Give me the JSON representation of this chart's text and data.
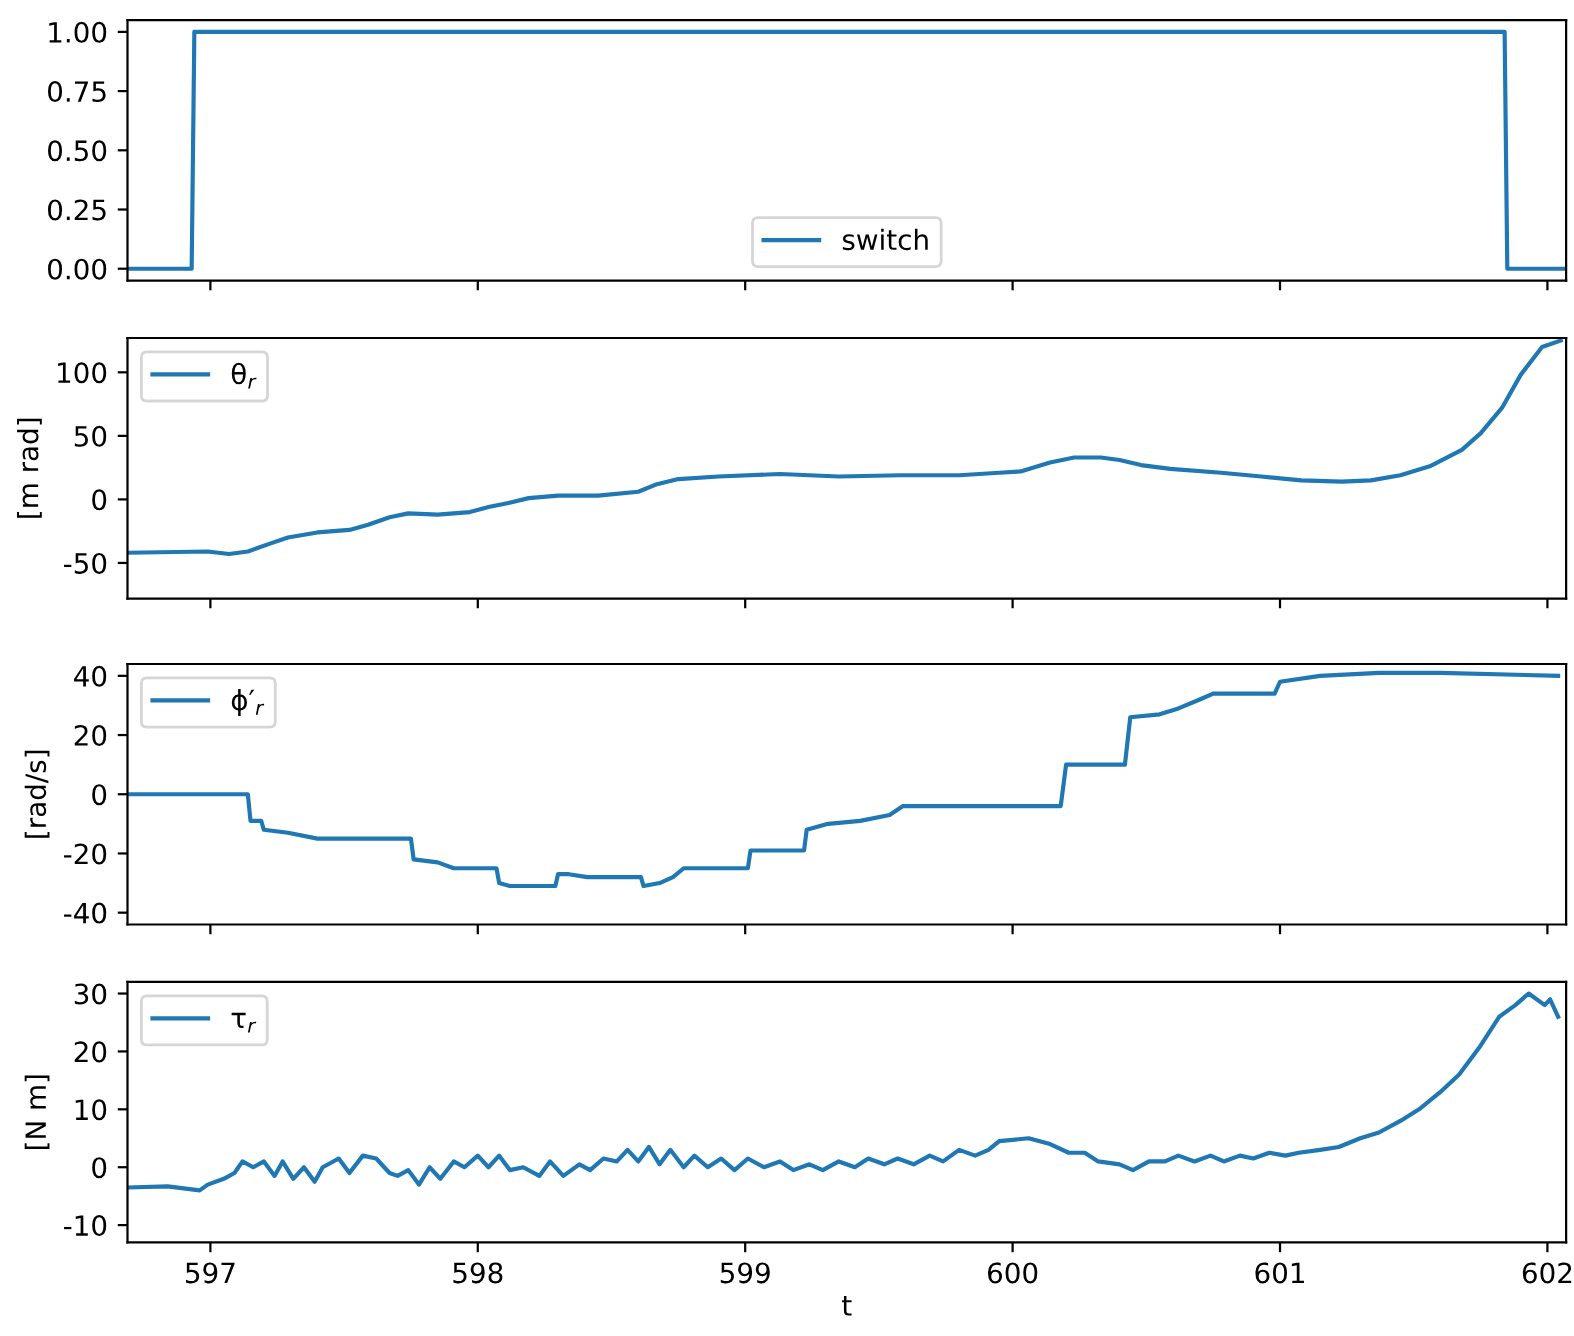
{
  "chart_data": [
    {
      "type": "line",
      "xlim": [
        596.69,
        602.07
      ],
      "xticks": [
        597,
        598,
        599,
        600,
        601,
        602
      ],
      "tick_labels": "y",
      "ylim": [
        -0.05,
        1.05
      ],
      "yticks": [
        {
          "value": 0,
          "label": "0.00"
        },
        {
          "value": 0.25,
          "label": "0.25"
        },
        {
          "value": 0.5,
          "label": "0.50"
        },
        {
          "value": 0.75,
          "label": "0.75"
        },
        {
          "value": 1,
          "label": "1.00"
        }
      ],
      "legend": "bottom",
      "grid": false,
      "series": [
        {
          "name": "switch",
          "color": "#1f77b4",
          "x": [
            596.69,
            596.93,
            596.94,
            601.84,
            601.85,
            602.07
          ],
          "values": [
            0,
            0,
            1,
            1,
            0,
            0
          ]
        }
      ]
    },
    {
      "type": "line",
      "xlim": [
        596.69,
        602.07
      ],
      "xticks": [
        597,
        598,
        599,
        600,
        601,
        602
      ],
      "tick_labels": "y",
      "ylim": [
        -78,
        127
      ],
      "yticks": [
        -50,
        0,
        50,
        100
      ],
      "ylabel": "[m rad]",
      "legend": "top left",
      "grid": false,
      "series": [
        {
          "name": "θ$_{r}$",
          "color": "#1f77b4",
          "x": [
            596.69,
            596.99,
            597.07,
            597.14,
            597.22,
            597.29,
            597.4,
            597.52,
            597.59,
            597.67,
            597.74,
            597.85,
            597.97,
            598.04,
            598.11,
            598.19,
            598.3,
            598.45,
            598.6,
            598.67,
            598.75,
            598.9,
            599.13,
            599.35,
            599.58,
            599.8,
            599.95,
            600.03,
            600.14,
            600.23,
            600.33,
            600.4,
            600.48,
            600.59,
            600.78,
            600.93,
            601.08,
            601.23,
            601.34,
            601.45,
            601.56,
            601.68,
            601.75,
            601.83,
            601.9,
            601.98,
            602.05
          ],
          "values": [
            -42,
            -41,
            -43,
            -41,
            -35,
            -30,
            -26,
            -24,
            -20,
            -14,
            -11,
            -12,
            -10,
            -6,
            -3,
            1,
            3,
            3,
            6,
            12,
            16,
            18,
            20,
            18,
            19,
            19,
            21,
            22,
            29,
            33,
            33,
            31,
            27,
            24,
            21,
            18,
            15,
            14,
            15,
            19,
            26,
            39,
            52,
            72,
            98,
            120,
            125
          ]
        }
      ]
    },
    {
      "type": "line",
      "xlim": [
        596.69,
        602.07
      ],
      "xticks": [
        597,
        598,
        599,
        600,
        601,
        602
      ],
      "tick_labels": "y",
      "ylim": [
        -44,
        44
      ],
      "yticks": [
        -40,
        -20,
        0,
        20,
        40
      ],
      "ylabel": "[rad/s]",
      "legend": "top left",
      "grid": false,
      "series": [
        {
          "name": "ϕ′$_{r}$",
          "color": "#1f77b4",
          "x": [
            596.69,
            597.14,
            597.15,
            597.19,
            597.2,
            597.29,
            597.4,
            597.75,
            597.76,
            597.85,
            597.91,
            598.07,
            598.08,
            598.12,
            598.29,
            598.3,
            598.34,
            598.41,
            598.61,
            598.62,
            598.68,
            598.73,
            598.77,
            599.01,
            599.02,
            599.22,
            599.23,
            599.31,
            599.43,
            599.54,
            599.59,
            600.18,
            600.2,
            600.42,
            600.44,
            600.55,
            600.62,
            600.7,
            600.75,
            600.98,
            601.0,
            601.15,
            601.37,
            601.6,
            602.04
          ],
          "values": [
            0,
            0,
            -9,
            -9,
            -12,
            -13,
            -15,
            -15,
            -22,
            -23,
            -25,
            -25,
            -30,
            -31,
            -31,
            -27,
            -27,
            -28,
            -28,
            -31,
            -30,
            -28,
            -25,
            -25,
            -19,
            -19,
            -12,
            -10,
            -9,
            -7,
            -4,
            -4,
            10,
            10,
            26,
            27,
            29,
            32,
            34,
            34,
            38,
            40,
            41,
            41,
            40
          ]
        }
      ]
    },
    {
      "type": "line",
      "xlim": [
        596.69,
        602.07
      ],
      "xticks": [
        597,
        598,
        599,
        600,
        601,
        602
      ],
      "ylim": [
        -13,
        32
      ],
      "yticks": [
        -10,
        0,
        10,
        20,
        30
      ],
      "ylabel": "[N m]",
      "xlabel": "t",
      "legend": "top left",
      "grid": false,
      "series": [
        {
          "name": "τ$_{r}$",
          "color": "#1f77b4",
          "x": [
            596.69,
            596.84,
            596.96,
            596.99,
            597.05,
            597.09,
            597.12,
            597.16,
            597.2,
            597.24,
            597.27,
            597.31,
            597.35,
            597.39,
            597.42,
            597.48,
            597.52,
            597.57,
            597.62,
            597.67,
            597.7,
            597.74,
            597.78,
            597.82,
            597.86,
            597.91,
            597.95,
            598.0,
            598.04,
            598.08,
            598.12,
            598.17,
            598.23,
            598.27,
            598.32,
            598.38,
            598.42,
            598.47,
            598.52,
            598.56,
            598.6,
            598.64,
            598.68,
            598.72,
            598.77,
            598.81,
            598.86,
            598.91,
            598.96,
            599.01,
            599.07,
            599.13,
            599.18,
            599.24,
            599.29,
            599.35,
            599.41,
            599.46,
            599.52,
            599.57,
            599.63,
            599.69,
            599.74,
            599.8,
            599.86,
            599.91,
            599.95,
            600.06,
            600.14,
            600.21,
            600.27,
            600.32,
            600.4,
            600.45,
            600.51,
            600.57,
            600.62,
            600.68,
            600.74,
            600.79,
            600.85,
            600.9,
            600.96,
            601.02,
            601.07,
            601.15,
            601.22,
            601.3,
            601.37,
            601.45,
            601.52,
            601.6,
            601.67,
            601.75,
            601.82,
            601.88,
            601.93,
            601.99,
            602.01,
            602.04
          ],
          "values": [
            -3.5,
            -3.3,
            -4,
            -3,
            -2,
            -1,
            1,
            0,
            1,
            -1.5,
            1,
            -2,
            0,
            -2.5,
            0,
            1.5,
            -1,
            2,
            1.5,
            -1,
            -1.5,
            -0.5,
            -3,
            0,
            -2,
            1,
            0,
            2,
            0,
            2,
            -0.5,
            0,
            -1.5,
            1,
            -1.5,
            0.5,
            -0.5,
            1.5,
            1,
            3,
            1,
            3.5,
            0.5,
            3,
            0,
            2,
            0,
            1.5,
            -0.5,
            1.5,
            0,
            1,
            -0.5,
            0.5,
            -0.5,
            1,
            0,
            1.5,
            0.5,
            1.5,
            0.5,
            2,
            1,
            3,
            2,
            3,
            4.5,
            5,
            4,
            2.5,
            2.5,
            1,
            0.5,
            -0.5,
            1,
            1,
            2,
            1,
            2,
            1,
            2,
            1.5,
            2.5,
            2,
            2.5,
            3,
            3.5,
            5,
            6,
            8,
            10,
            13,
            16,
            21,
            26,
            28,
            30,
            28,
            29,
            26
          ]
        }
      ]
    }
  ]
}
